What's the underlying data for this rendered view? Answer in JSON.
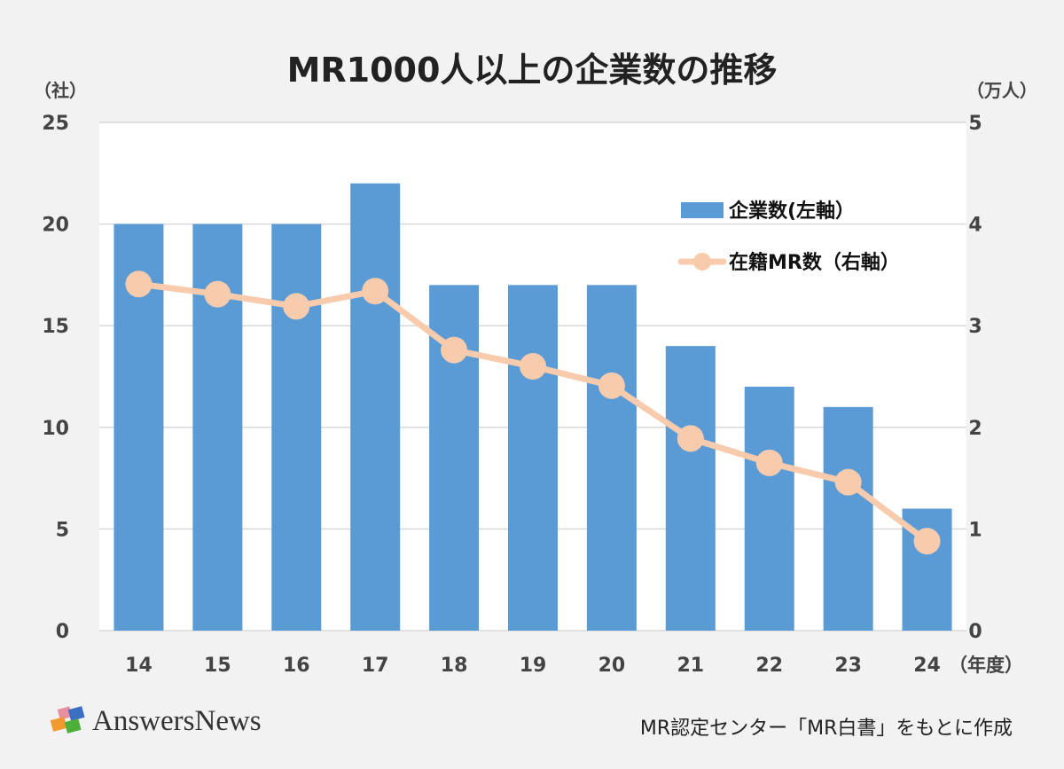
{
  "chart_data": {
    "type": "bar+line",
    "title": "MR1000人以上の企業数の推移",
    "left_unit": "（社）",
    "right_unit": "（万人）",
    "x_unit": "（年度）",
    "categories": [
      "14",
      "15",
      "16",
      "17",
      "18",
      "19",
      "20",
      "21",
      "22",
      "23",
      "24"
    ],
    "ylim_left": [
      0,
      25
    ],
    "yticks_left": [
      "0",
      "5",
      "10",
      "15",
      "20",
      "25"
    ],
    "ylim_right": [
      0,
      5
    ],
    "yticks_right": [
      "0",
      "1",
      "2",
      "3",
      "4",
      "5"
    ],
    "grid": true,
    "legend_position": "top-right",
    "series": [
      {
        "name": "企業数(左軸）",
        "type": "bar",
        "axis": "left",
        "color": "#5b9bd5",
        "values": [
          20,
          20,
          20,
          22,
          17,
          17,
          17,
          14,
          12,
          11,
          6
        ]
      },
      {
        "name": "在籍MR数（右軸）",
        "type": "line",
        "axis": "right",
        "color": "#f8cbad",
        "values": [
          3.41,
          3.31,
          3.19,
          3.34,
          2.76,
          2.6,
          2.41,
          1.89,
          1.65,
          1.46,
          0.88
        ]
      }
    ]
  },
  "footer": {
    "logo": "AnswersNews",
    "source": "MR認定センター「MR白書」をもとに作成"
  }
}
